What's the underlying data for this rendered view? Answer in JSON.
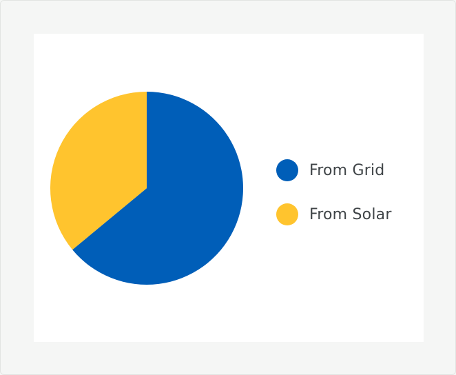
{
  "chart_data": {
    "type": "pie",
    "title": "",
    "slices": [
      {
        "name": "From Grid",
        "value": 64,
        "color": "#005eb8"
      },
      {
        "name": "From Solar",
        "value": 36,
        "color": "#ffc42e"
      }
    ],
    "legend_position": "right"
  }
}
